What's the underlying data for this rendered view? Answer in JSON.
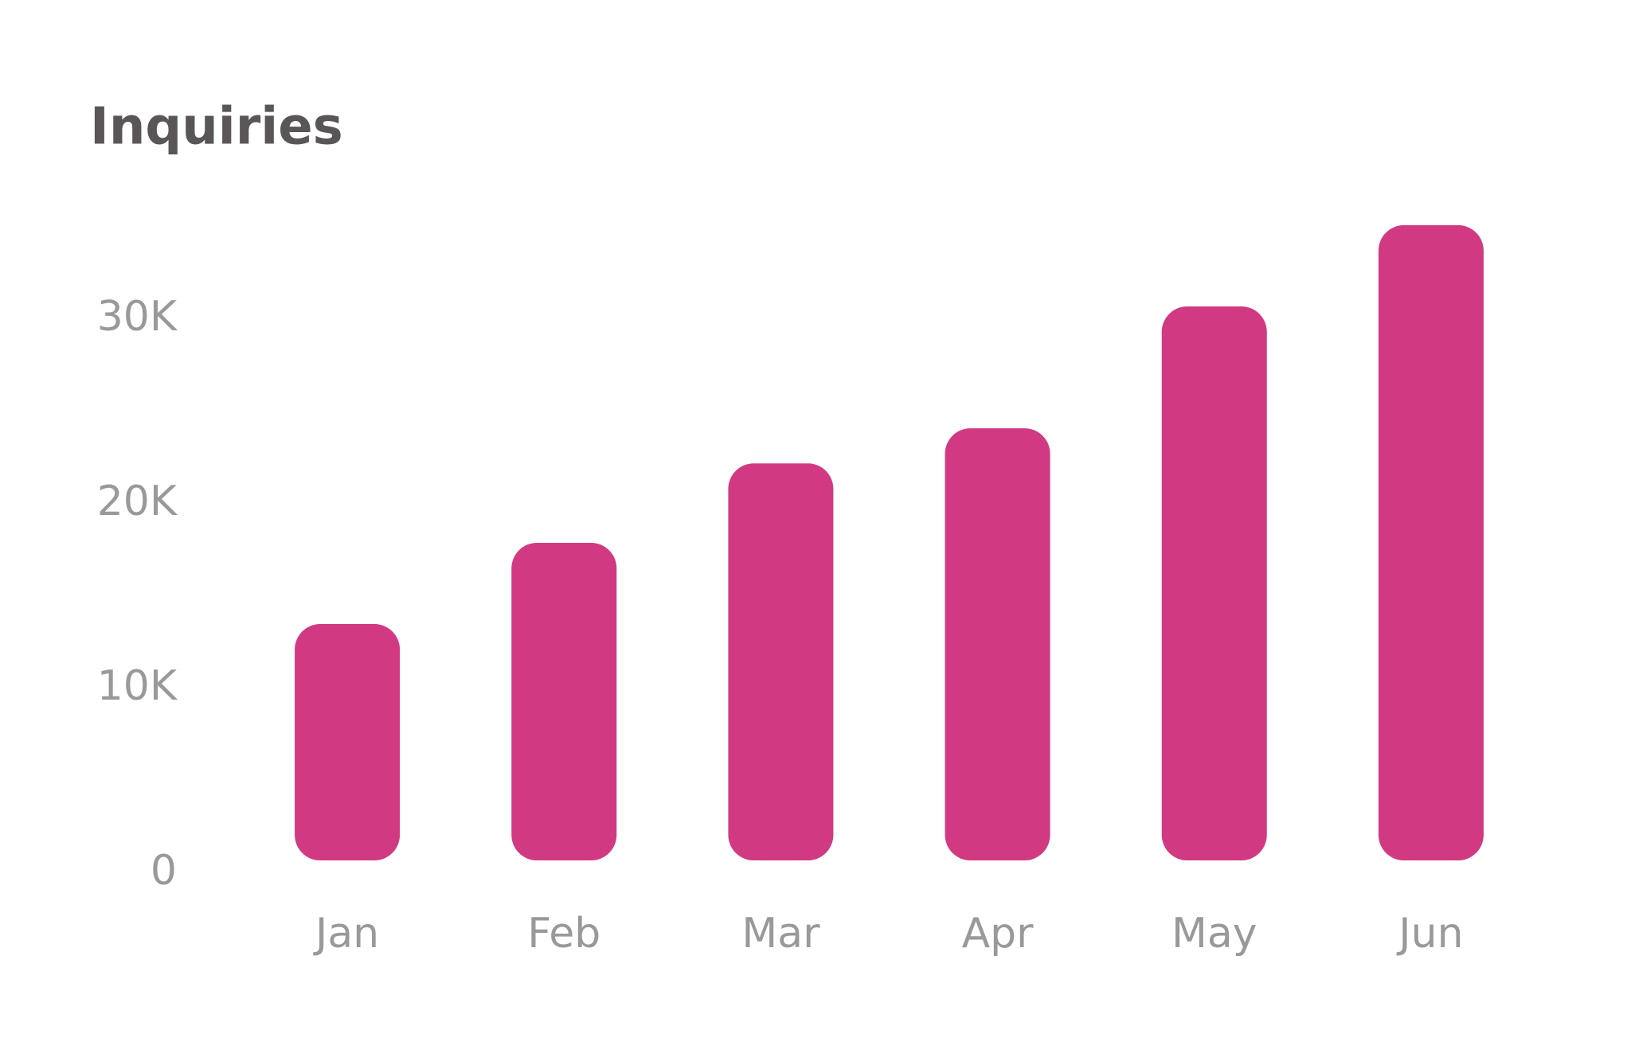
{
  "chart_data": {
    "type": "bar",
    "title": "Inquiries",
    "categories": [
      "Jan",
      "Feb",
      "Mar",
      "Apr",
      "May",
      "Jun"
    ],
    "values": [
      12800,
      17200,
      21500,
      23400,
      30000,
      34400
    ],
    "color": "#d13a82",
    "ylim": [
      0,
      35000
    ],
    "yticks": [
      0,
      {
        "value": 10000,
        "label": "10K"
      },
      {
        "value": 20000,
        "label": "20K"
      },
      {
        "value": 30000,
        "label": "30K"
      }
    ],
    "grid": false
  }
}
